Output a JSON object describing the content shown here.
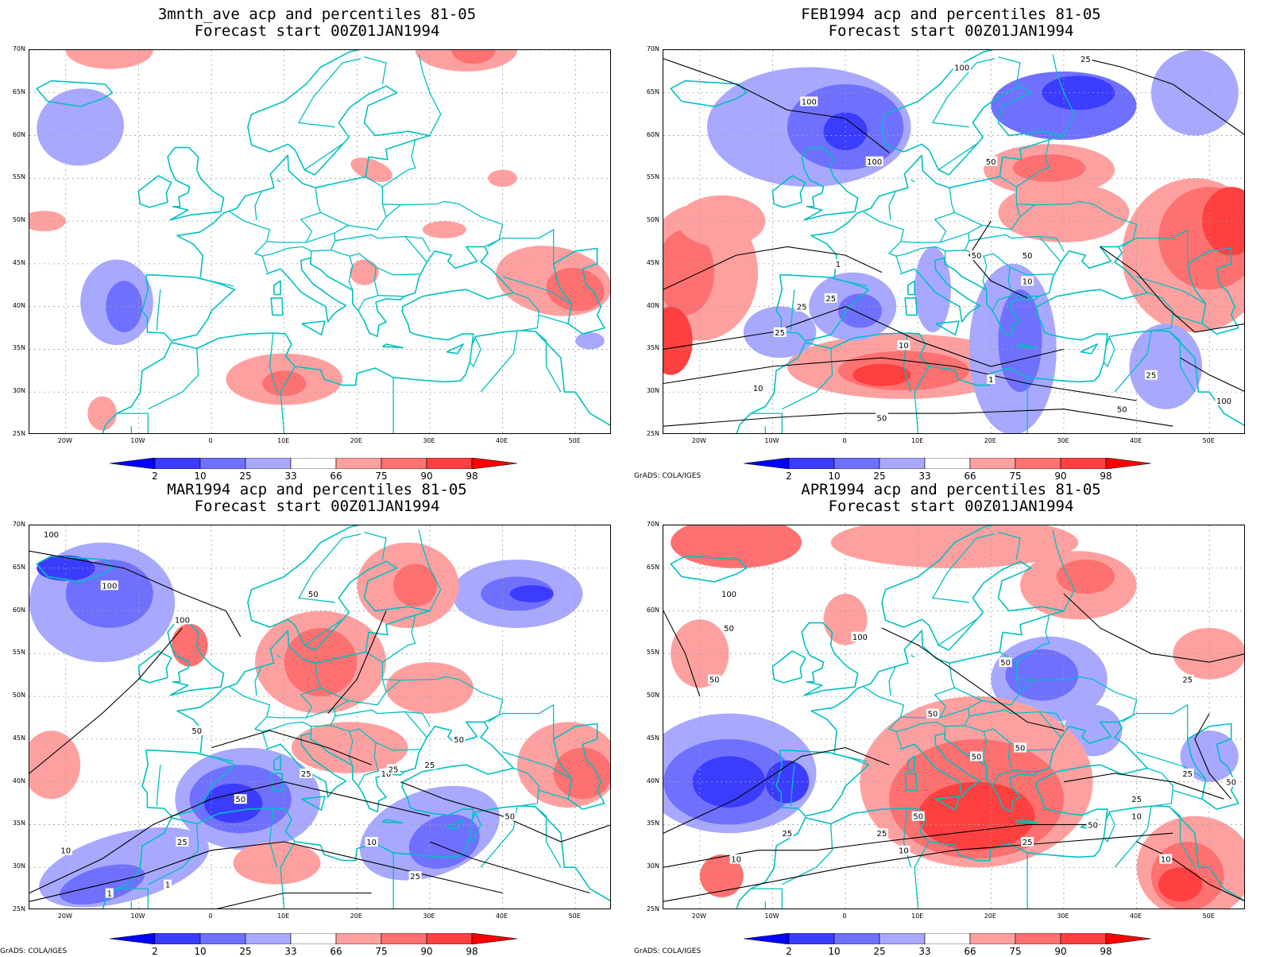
{
  "panels": [
    {
      "id": "p1",
      "title_line1": "3mnth_ave acp and percentiles 81-05",
      "title_line2": "Forecast start 00Z01JAN1994",
      "credit": ""
    },
    {
      "id": "p2",
      "title_line1": "FEB1994 acp and percentiles 81-05",
      "title_line2": "Forecast start 00Z01JAN1994",
      "credit": "GrADS: COLA/IGES"
    },
    {
      "id": "p3",
      "title_line1": "MAR1994 acp and percentiles 81-05",
      "title_line2": "Forecast start 00Z01JAN1994",
      "credit": "GrADS: COLA/IGES"
    },
    {
      "id": "p4",
      "title_line1": "APR1994 acp and percentiles 81-05",
      "title_line2": "Forecast start 00Z01JAN1994",
      "credit": "GrADS: COLA/IGES"
    }
  ],
  "map": {
    "lat_labels": [
      "70N",
      "65N",
      "60N",
      "55N",
      "50N",
      "45N",
      "40N",
      "35N",
      "30N",
      "25N"
    ],
    "lat_values": [
      70,
      65,
      60,
      55,
      50,
      45,
      40,
      35,
      30,
      25
    ],
    "lon_labels": [
      "20W",
      "10W",
      "0",
      "10E",
      "20E",
      "30E",
      "40E",
      "50E"
    ],
    "lon_values": [
      -20,
      -10,
      0,
      10,
      20,
      30,
      40,
      50
    ],
    "lon_range": [
      -25,
      55
    ],
    "lat_range": [
      25,
      70
    ]
  },
  "colorbar": {
    "labels": [
      "2",
      "10",
      "25",
      "33",
      "66",
      "75",
      "90",
      "98"
    ],
    "colors": [
      "#0000ff",
      "#3c3cff",
      "#7070ff",
      "#a8a8ff",
      "#ffffff",
      "#ffa0a0",
      "#ff7070",
      "#ff4040",
      "#ff0000"
    ]
  },
  "colors": {
    "coast": "#00c0c0",
    "contour": "#000000",
    "grid": "#a0a0a0",
    "blue_light": "#a8a8ff",
    "blue_mid": "#7070ff",
    "blue_dark": "#3c3cff",
    "red_light": "#ffa0a0",
    "red_mid": "#ff7070",
    "red_dark": "#ff4040"
  },
  "contour_labels": {
    "p2": [
      "100",
      "100",
      "100",
      "50",
      "50",
      "50",
      "25",
      "25",
      "25",
      "10",
      "10",
      "1",
      "1",
      "50",
      "25",
      "10",
      "25",
      "50",
      "100"
    ],
    "p3": [
      "100",
      "100",
      "100",
      "50",
      "50",
      "50",
      "25",
      "25",
      "10",
      "10",
      "1",
      "1",
      "50",
      "25",
      "10",
      "50",
      "25",
      "25"
    ],
    "p4": [
      "100",
      "100",
      "50",
      "50",
      "50",
      "25",
      "50",
      "25",
      "10",
      "10",
      "25",
      "50",
      "50",
      "25",
      "50",
      "25",
      "10",
      "10",
      "50",
      "50",
      "25"
    ]
  }
}
